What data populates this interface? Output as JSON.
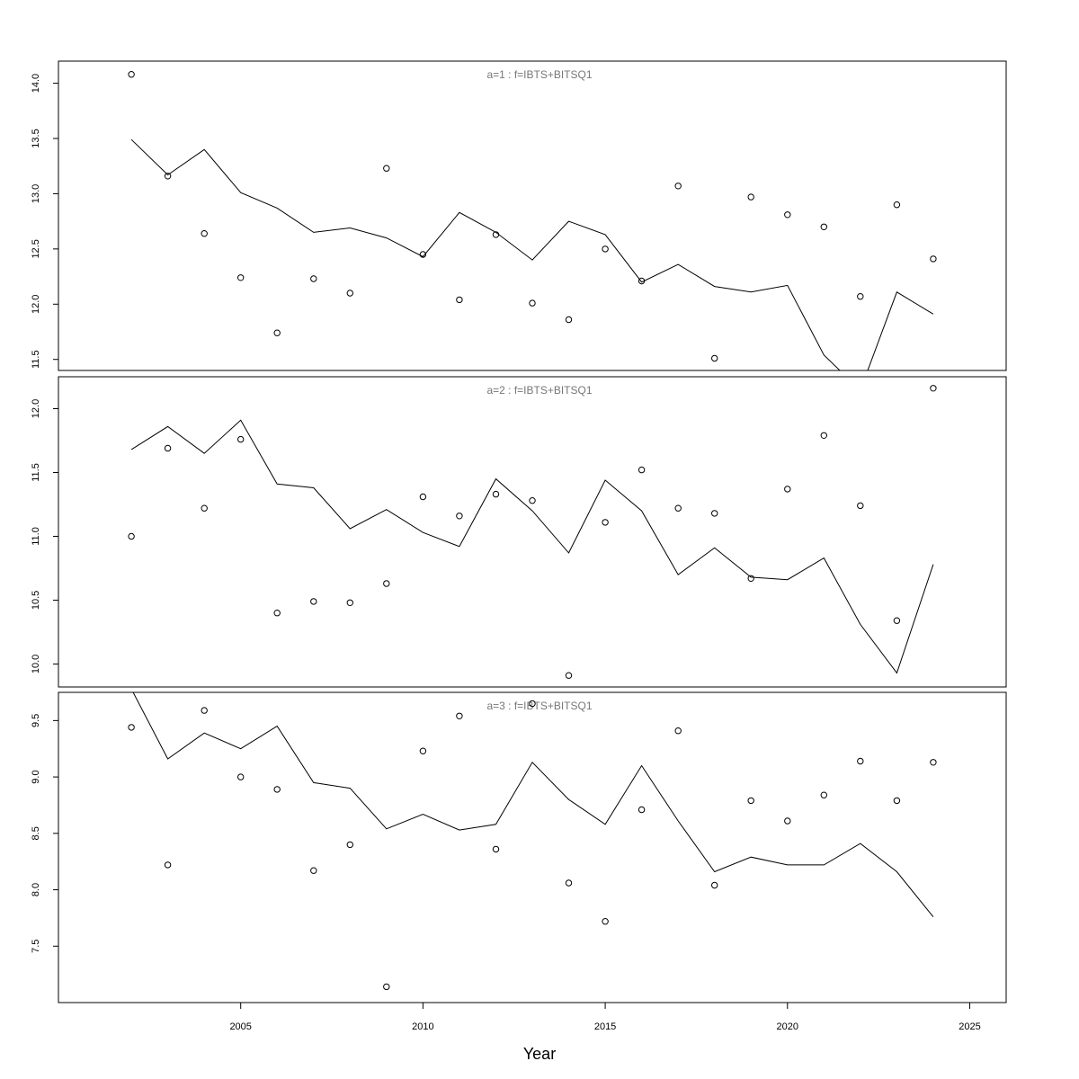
{
  "chart_data": {
    "type": "line",
    "xlabel": "Year",
    "ylabel": "",
    "x_ticks": [
      2005,
      2010,
      2015,
      2020,
      2025
    ],
    "xlim": [
      2000,
      2026
    ],
    "years": [
      2002,
      2003,
      2004,
      2005,
      2006,
      2007,
      2008,
      2009,
      2010,
      2011,
      2012,
      2013,
      2014,
      2015,
      2016,
      2017,
      2018,
      2019,
      2020,
      2021,
      2022,
      2023,
      2024
    ],
    "panels": [
      {
        "title": "a=1  :  f=IBTS+BITSQ1",
        "ylim": [
          11.4,
          14.2
        ],
        "y_ticks": [
          11.5,
          12.0,
          12.5,
          13.0,
          13.5,
          14.0
        ],
        "y_tick_labels": [
          "11.5",
          "12.0",
          "12.5",
          "13.0",
          "13.5",
          "14.0"
        ],
        "points": [
          14.08,
          13.16,
          12.64,
          12.24,
          11.74,
          12.23,
          12.1,
          13.23,
          12.45,
          12.04,
          12.63,
          12.01,
          11.86,
          12.5,
          12.21,
          13.07,
          11.51,
          12.97,
          12.81,
          12.7,
          12.07,
          12.9,
          12.41
        ],
        "line": [
          13.49,
          13.17,
          13.4,
          13.01,
          12.87,
          12.65,
          12.69,
          12.6,
          12.43,
          12.83,
          12.65,
          12.4,
          12.75,
          12.63,
          12.2,
          12.36,
          12.16,
          12.11,
          12.17,
          11.54,
          11.22,
          12.11,
          11.91
        ]
      },
      {
        "title": "a=2  :  f=IBTS+BITSQ1",
        "ylim": [
          9.82,
          12.25
        ],
        "y_ticks": [
          10.0,
          10.5,
          11.0,
          11.5,
          12.0
        ],
        "y_tick_labels": [
          "10.0",
          "10.5",
          "11.0",
          "11.5",
          "12.0"
        ],
        "points": [
          11.0,
          11.69,
          11.22,
          11.76,
          10.4,
          10.49,
          10.48,
          10.63,
          11.31,
          11.16,
          11.33,
          11.28,
          9.91,
          11.11,
          11.52,
          11.22,
          11.18,
          10.67,
          11.37,
          11.79,
          11.24,
          10.34,
          12.16
        ],
        "line": [
          11.68,
          11.86,
          11.65,
          11.91,
          11.41,
          11.38,
          11.06,
          11.21,
          11.03,
          10.92,
          11.45,
          11.2,
          10.87,
          11.44,
          11.2,
          10.7,
          10.91,
          10.68,
          10.66,
          10.83,
          10.31,
          9.93,
          10.78
        ]
      },
      {
        "title": "a=3  :  f=IBTS+BITSQ1",
        "ylim": [
          7.0,
          9.75
        ],
        "y_ticks": [
          7.5,
          8.0,
          8.5,
          9.0,
          9.5
        ],
        "y_tick_labels": [
          "7.5",
          "8.0",
          "8.5",
          "9.0",
          "9.5"
        ],
        "points": [
          9.44,
          8.22,
          9.59,
          9.0,
          8.89,
          8.17,
          8.4,
          7.14,
          9.23,
          9.54,
          8.36,
          9.65,
          8.06,
          7.72,
          8.71,
          9.41,
          8.04,
          8.79,
          8.61,
          8.84,
          9.14,
          8.79,
          9.13
        ],
        "line": [
          9.78,
          9.16,
          9.39,
          9.25,
          9.45,
          8.95,
          8.9,
          8.54,
          8.67,
          8.53,
          8.58,
          9.13,
          8.8,
          8.58,
          9.1,
          8.61,
          8.16,
          8.29,
          8.22,
          8.22,
          8.41,
          8.16,
          7.76
        ]
      }
    ]
  }
}
